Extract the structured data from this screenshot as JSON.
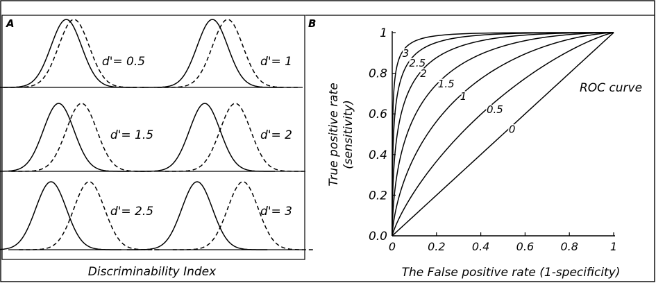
{
  "panelA": {
    "label": "A",
    "xlabel": "Discriminability Index",
    "line_styles": {
      "noise": "solid",
      "signal": "dashed"
    },
    "panels": [
      {
        "label": "d'= 0.5",
        "d": 0.5
      },
      {
        "label": "d'= 1",
        "d": 1
      },
      {
        "label": "d'= 1.5",
        "d": 1.5
      },
      {
        "label": "d'= 2",
        "d": 2
      },
      {
        "label": "d'= 2.5",
        "d": 2.5
      },
      {
        "label": "d'= 3",
        "d": 3
      }
    ]
  },
  "chart_data": {
    "type": "line",
    "panel_label": "B",
    "title": "ROC curve",
    "xlabel": "The False positive rate (1-specificity)",
    "ylabel": "True positive rate (sensitivity)",
    "ylabel_lines": [
      "True positive rate",
      "(sensitivity)"
    ],
    "xlim": [
      0,
      1
    ],
    "ylim": [
      0,
      1
    ],
    "xticks": [
      "0",
      "0.2",
      "0.4",
      "0.6",
      "0.8",
      "1"
    ],
    "yticks": [
      "0.0",
      "0.2",
      "0.4",
      "0.6",
      "0.8",
      "1"
    ],
    "grid": false,
    "series": [
      {
        "name": "0",
        "d": 0
      },
      {
        "name": "0.5",
        "d": 0.5
      },
      {
        "name": "1",
        "d": 1
      },
      {
        "name": "1.5",
        "d": 1.5
      },
      {
        "name": "2",
        "d": 2
      },
      {
        "name": "2.5",
        "d": 2.5
      },
      {
        "name": "3",
        "d": 3
      }
    ],
    "curve_label_x": {
      "0": 0.52,
      "0.5": 0.42,
      "1": 0.3,
      "1.5": 0.2,
      "2": 0.12,
      "2.5": 0.07,
      "3": 0.04
    }
  }
}
